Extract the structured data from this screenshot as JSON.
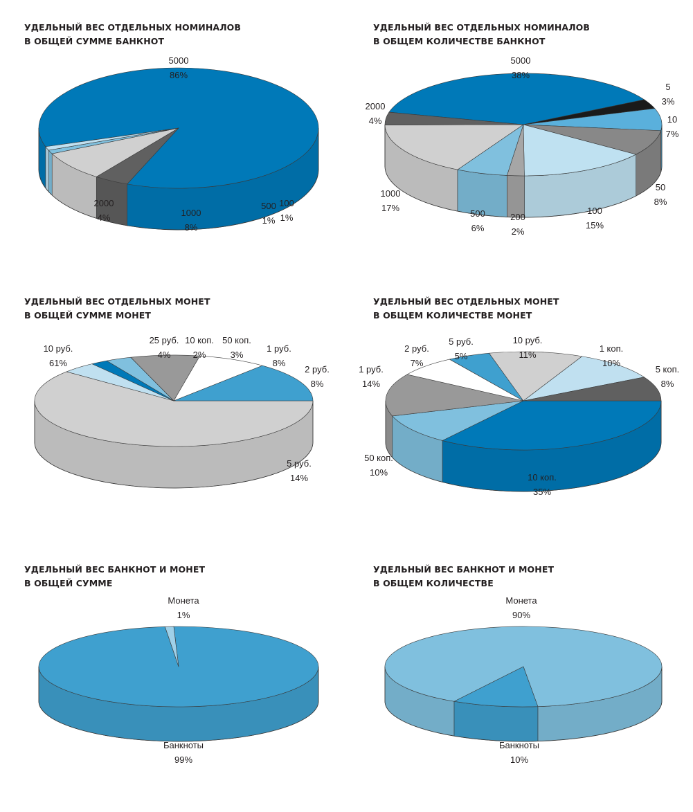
{
  "chart_data": [
    {
      "type": "pie",
      "title_line1": "УДЕЛЬНЫЙ ВЕС ОТДЕЛЬНЫХ НОМИНАЛОВ",
      "title_line2": "В ОБЩЕЙ СУММЕ БАНКНОТ",
      "slices": [
        {
          "label": "5000",
          "value": 86,
          "value_label": "86%",
          "color": "#0079b8"
        },
        {
          "label": "2000",
          "value": 4,
          "value_label": "4%",
          "color": "#606060"
        },
        {
          "label": "1000",
          "value": 8,
          "value_label": "8%",
          "color": "#d0d0d0"
        },
        {
          "label": "500",
          "value": 1,
          "value_label": "1%",
          "color": "#80c0de"
        },
        {
          "label": "100",
          "value": 1,
          "value_label": "1%",
          "color": "#c0e0f0"
        }
      ]
    },
    {
      "type": "pie",
      "title_line1": "УДЕЛЬНЫЙ ВЕС ОТДЕЛЬНЫХ НОМИНАЛОВ",
      "title_line2": "В ОБЩЕМ КОЛИЧЕСТВЕ БАНКНОТ",
      "slices": [
        {
          "label": "5000",
          "value": 38,
          "value_label": "38%",
          "color": "#0079b8"
        },
        {
          "label": "5",
          "value": 3,
          "value_label": "3%",
          "color": "#1a1a1a"
        },
        {
          "label": "10",
          "value": 7,
          "value_label": "7%",
          "color": "#5ab0dc"
        },
        {
          "label": "50",
          "value": 8,
          "value_label": "8%",
          "color": "#888888"
        },
        {
          "label": "100",
          "value": 15,
          "value_label": "15%",
          "color": "#bfe1f1"
        },
        {
          "label": "200",
          "value": 2,
          "value_label": "2%",
          "color": "#a6a6a6"
        },
        {
          "label": "500",
          "value": 6,
          "value_label": "6%",
          "color": "#80c0de"
        },
        {
          "label": "1000",
          "value": 17,
          "value_label": "17%",
          "color": "#d0d0d0"
        },
        {
          "label": "2000",
          "value": 4,
          "value_label": "4%",
          "color": "#606060"
        }
      ]
    },
    {
      "type": "pie",
      "title_line1": "УДЕЛЬНЫЙ ВЕС ОТДЕЛЬНЫХ МОНЕТ",
      "title_line2": "В ОБЩЕЙ СУММЕ МОНЕТ",
      "slices": [
        {
          "label": "10 руб.",
          "value": 61,
          "value_label": "61%",
          "color": "#d0d0d0"
        },
        {
          "label": "25 руб.",
          "value": 4,
          "value_label": "4%",
          "color": "#c0e0f0"
        },
        {
          "label": "10 коп.",
          "value": 2,
          "value_label": "2%",
          "color": "#0079b8"
        },
        {
          "label": "50 коп.",
          "value": 3,
          "value_label": "3%",
          "color": "#80c0de"
        },
        {
          "label": "1 руб.",
          "value": 8,
          "value_label": "8%",
          "color": "#999999"
        },
        {
          "label": "2 руб.",
          "value": 8,
          "value_label": "8%",
          "color": "#ffffff"
        },
        {
          "label": "5 руб.",
          "value": 14,
          "value_label": "14%",
          "color": "#3fa0cf"
        }
      ]
    },
    {
      "type": "pie",
      "title_line1": "УДЕЛЬНЫЙ ВЕС ОТДЕЛЬНЫХ МОНЕТ",
      "title_line2": "В ОБЩЕМ КОЛИЧЕСТВЕ МОНЕТ",
      "slices": [
        {
          "label": "10 коп.",
          "value": 35,
          "value_label": "35%",
          "color": "#0079b8"
        },
        {
          "label": "50 коп.",
          "value": 10,
          "value_label": "10%",
          "color": "#80c0de"
        },
        {
          "label": "1 руб.",
          "value": 14,
          "value_label": "14%",
          "color": "#999999"
        },
        {
          "label": "2 руб.",
          "value": 7,
          "value_label": "7%",
          "color": "#ffffff"
        },
        {
          "label": "5 руб.",
          "value": 5,
          "value_label": "5%",
          "color": "#3fa0cf"
        },
        {
          "label": "10 руб.",
          "value": 11,
          "value_label": "11%",
          "color": "#d0d0d0"
        },
        {
          "label": "1 коп.",
          "value": 10,
          "value_label": "10%",
          "color": "#c0e0f0"
        },
        {
          "label": "5 коп.",
          "value": 8,
          "value_label": "8%",
          "color": "#606060"
        }
      ]
    },
    {
      "type": "pie",
      "title_line1": "УДЕЛЬНЫЙ ВЕС БАНКНОТ И МОНЕТ",
      "title_line2": "В ОБЩЕЙ СУММЕ",
      "slices": [
        {
          "label": "Банкноты",
          "value": 99,
          "value_label": "99%",
          "color": "#3fa0cf"
        },
        {
          "label": "Монета",
          "value": 1,
          "value_label": "1%",
          "color": "#9fd0e8"
        }
      ]
    },
    {
      "type": "pie",
      "title_line1": "УДЕЛЬНЫЙ ВЕС БАНКНОТ И МОНЕТ",
      "title_line2": "В ОБЩЕМ КОЛИЧЕСТВЕ",
      "slices": [
        {
          "label": "Монета",
          "value": 90,
          "value_label": "90%",
          "color": "#80c0de"
        },
        {
          "label": "Банкноты",
          "value": 10,
          "value_label": "10%",
          "color": "#3fa0cf"
        }
      ]
    }
  ]
}
